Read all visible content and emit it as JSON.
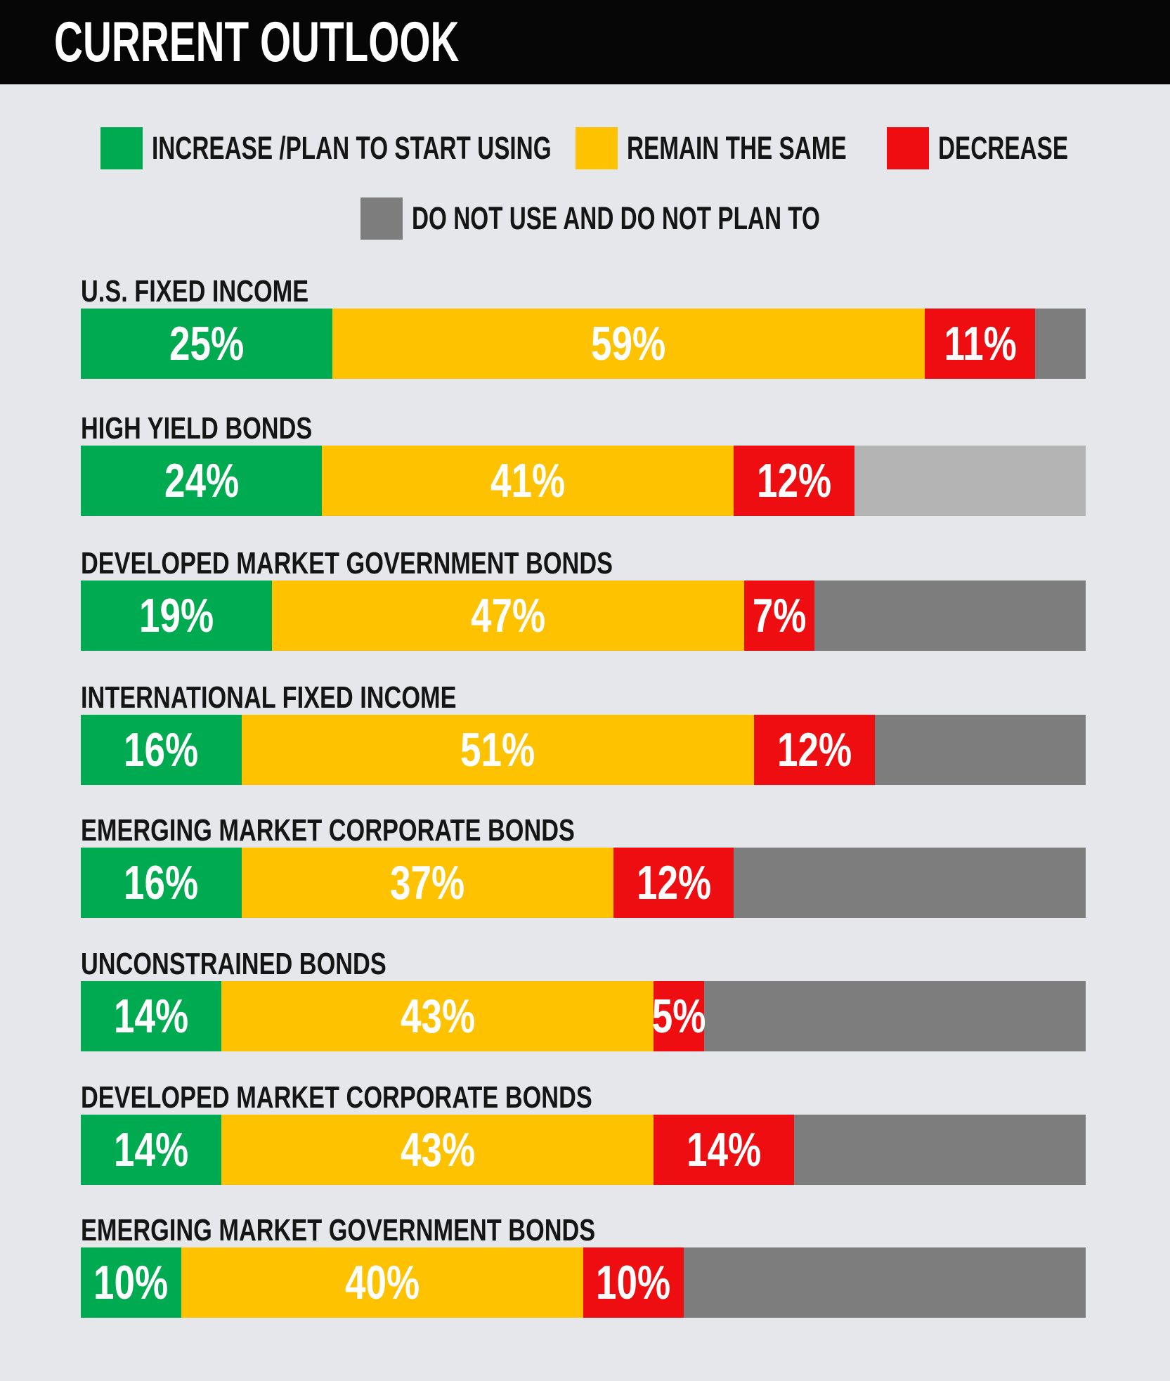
{
  "title": "CURRENT OUTLOOK",
  "background_color": "#e6e7ea",
  "header_color": "#060606",
  "legend": {
    "items": [
      {
        "label": "INCREASE /PLAN TO START USING",
        "color": "#00aa51"
      },
      {
        "label": "REMAIN THE SAME",
        "color": "#fec201"
      },
      {
        "label": "DECREASE",
        "color": "#ee0d10"
      },
      {
        "label": "DO NOT USE AND DO NOT PLAN TO",
        "color": "#7d7d7d"
      }
    ]
  },
  "chart_data": {
    "type": "bar",
    "orientation": "horizontal-stacked",
    "title": "CURRENT OUTLOOK",
    "value_suffix": "%",
    "xlim": [
      0,
      100
    ],
    "categories": [
      "U.S. FIXED INCOME",
      "HIGH YIELD BONDS",
      "DEVELOPED MARKET GOVERNMENT BONDS",
      "INTERNATIONAL FIXED INCOME",
      "EMERGING MARKET CORPORATE BONDS",
      "UNCONSTRAINED BONDS",
      "DEVELOPED MARKET CORPORATE BONDS",
      "EMERGING MARKET GOVERNMENT BONDS"
    ],
    "series": [
      {
        "name": "INCREASE /PLAN TO START USING",
        "color": "#00aa51",
        "labeled": true,
        "values": [
          25,
          24,
          19,
          16,
          16,
          14,
          14,
          10
        ]
      },
      {
        "name": "REMAIN THE SAME",
        "color": "#fec201",
        "labeled": true,
        "values": [
          59,
          41,
          47,
          51,
          37,
          43,
          43,
          40
        ]
      },
      {
        "name": "DECREASE",
        "color": "#ee0d10",
        "labeled": true,
        "values": [
          11,
          12,
          7,
          12,
          12,
          5,
          14,
          10
        ]
      },
      {
        "name": "DO NOT USE AND DO NOT PLAN TO",
        "color": "#7d7d7d",
        "labeled": false,
        "values": [
          5,
          23,
          27,
          21,
          35,
          38,
          29,
          40
        ]
      }
    ],
    "rest_colors": [
      "#7d7d7d",
      "#b4b4b4",
      "#7d7d7d",
      "#7d7d7d",
      "#7d7d7d",
      "#7d7d7d",
      "#7d7d7d",
      "#7d7d7d"
    ]
  }
}
